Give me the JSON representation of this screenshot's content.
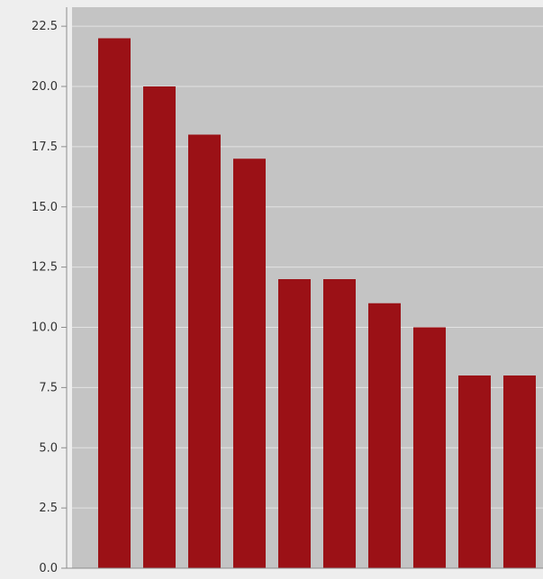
{
  "chart_data": {
    "type": "bar",
    "categories": [
      "",
      "",
      "",
      "",
      "",
      "",
      "",
      "",
      "",
      ""
    ],
    "values": [
      22,
      20,
      18,
      17,
      12,
      12,
      11,
      10,
      8,
      8
    ],
    "title": "",
    "xlabel": "",
    "ylabel": "",
    "ylim": [
      0,
      23
    ],
    "yticks": [
      "0.0",
      "2.5",
      "5.0",
      "7.5",
      "10.0",
      "12.5",
      "15.0",
      "17.5",
      "20.0",
      "22.5"
    ],
    "grid": true,
    "colors": {
      "bar": "#9b1116",
      "plot_background": "#c4c4c4",
      "page_background": "#eeeeee",
      "gridline": "#e2e2e2",
      "axis": "#8c8c8c"
    }
  }
}
